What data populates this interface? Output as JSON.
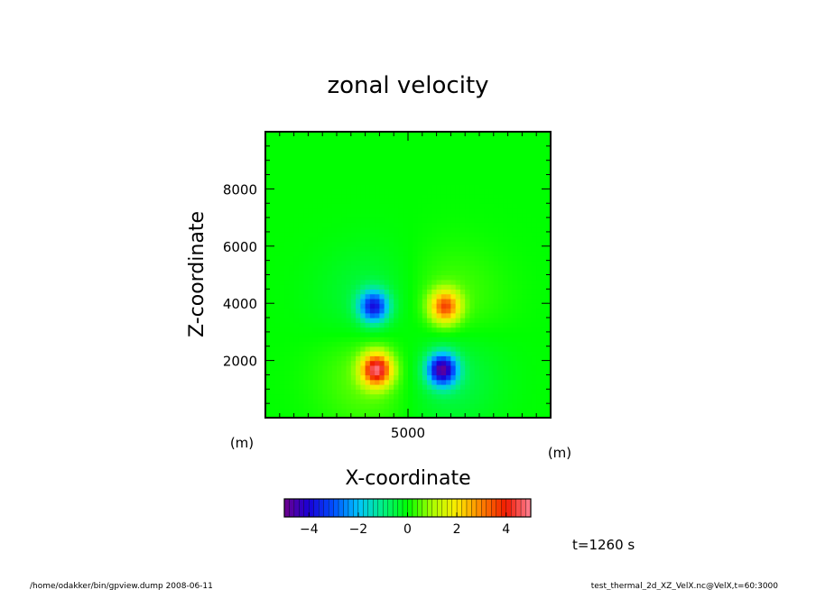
{
  "chart_data": {
    "type": "heatmap",
    "title": "zonal velocity",
    "xlabel": "X-coordinate",
    "ylabel": "Z-coordinate",
    "x_unit": "(m)",
    "y_unit": "(m)",
    "xlim": [
      0,
      10000
    ],
    "ylim": [
      0,
      10000
    ],
    "x_ticks": [
      5000
    ],
    "y_ticks": [
      2000,
      4000,
      6000,
      8000
    ],
    "colorbar": {
      "range": [
        -5,
        5
      ],
      "ticks": [
        -4,
        -2,
        0,
        2,
        4
      ],
      "tick_labels": [
        "−4",
        "−2",
        "0",
        "2",
        "4"
      ]
    },
    "features": [
      {
        "name": "upper-left",
        "x": 3800,
        "z": 3900,
        "value": -3.5
      },
      {
        "name": "upper-right",
        "x": 6300,
        "z": 3900,
        "value": 3.3
      },
      {
        "name": "lower-left",
        "x": 3900,
        "z": 1700,
        "value": 4.4
      },
      {
        "name": "lower-right",
        "x": 6200,
        "z": 1700,
        "value": -4.4
      }
    ]
  },
  "annotations": {
    "time": "t=1260 s",
    "footer_left": "/home/odakker/bin/gpview.dump  2008-06-11",
    "footer_right": "test_thermal_2d_XZ_VelX.nc@VelX,t=60:3000"
  }
}
